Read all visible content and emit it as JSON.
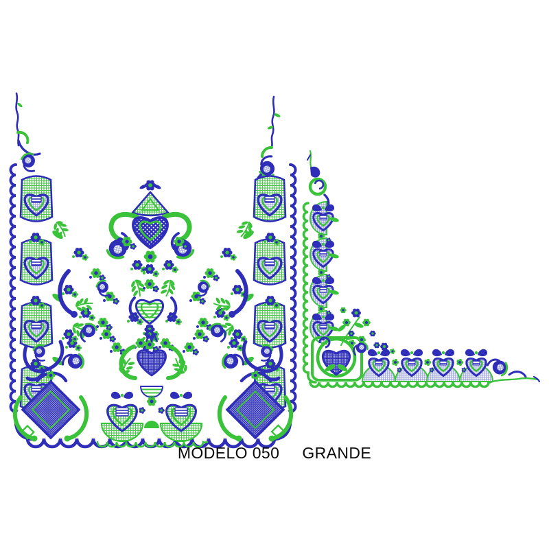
{
  "caption": {
    "model": "MODELO 050",
    "size": "GRANDE"
  },
  "palette": {
    "background": "#ffffff",
    "blue": "#2e2eb8",
    "green": "#3bc23b",
    "blue_lattice": "#97a0dc",
    "green_lattice": "#4cc54c",
    "caption_text": "#0b0b0b"
  },
  "artwork": {
    "panels": [
      {
        "name": "square-lace-panel",
        "description": "Large square lace embroidery design with tall spiked top corners, ornate side borders, central crown motif and dense bottom border"
      },
      {
        "name": "corner-border-panel",
        "description": "L-shaped corner border embroidery design with repeated heart motifs, lattice fills and scalloped green edge"
      }
    ]
  }
}
